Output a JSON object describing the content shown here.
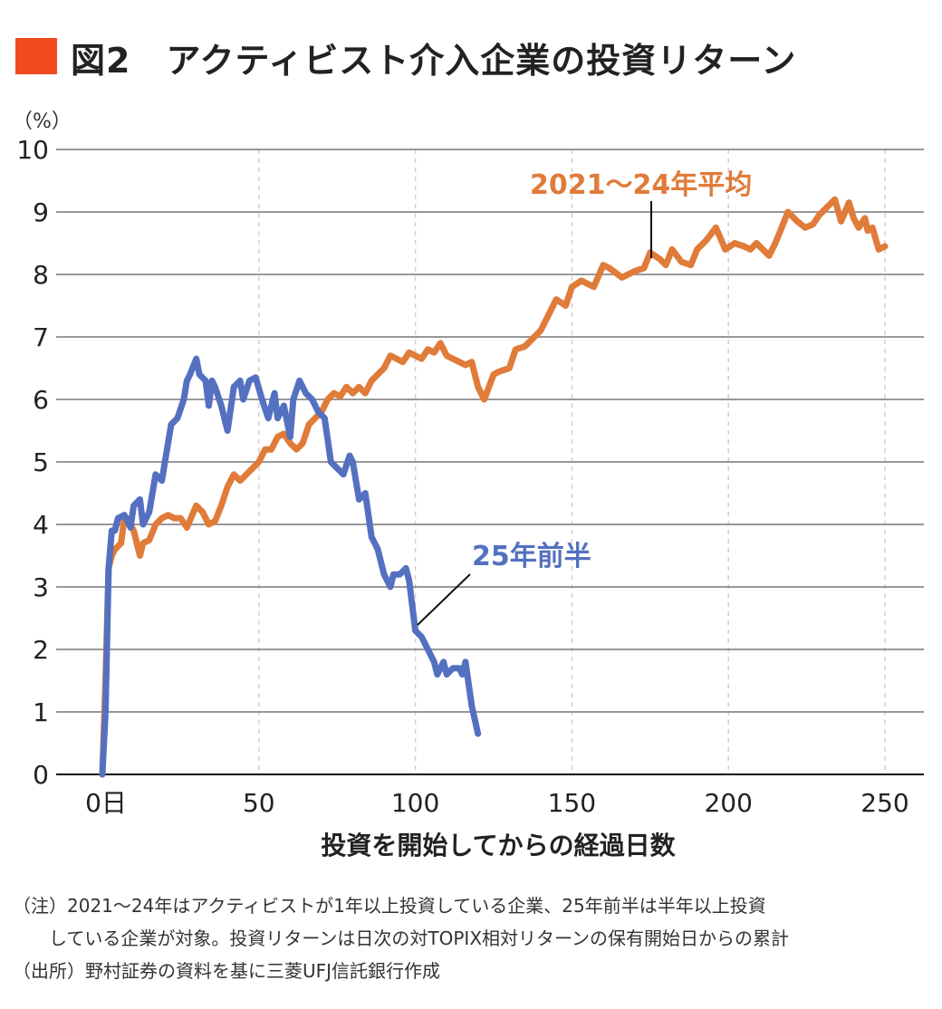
{
  "header": {
    "title": "図2　アクティビスト介入企業の投資リターン",
    "title_mark_color": "#f04a1e"
  },
  "chart_data": {
    "type": "line",
    "title": "図2　アクティビスト介入企業の投資リターン",
    "ylabel": "（%）",
    "xlabel": "投資を開始してからの経過日数",
    "xlim": [
      0,
      250
    ],
    "ylim": [
      0,
      10
    ],
    "x_ticks": [
      0,
      50,
      100,
      150,
      200,
      250
    ],
    "x_tick_labels": [
      "0日",
      "50",
      "100",
      "150",
      "200",
      "250"
    ],
    "y_ticks": [
      0,
      1,
      2,
      3,
      4,
      5,
      6,
      7,
      8,
      9,
      10
    ],
    "y_tick_labels": [
      "0",
      "1",
      "2",
      "3",
      "4",
      "5",
      "6",
      "7",
      "8",
      "9",
      "10"
    ],
    "grid": {
      "horizontal": "solid",
      "vertical": "dashed"
    },
    "legend": "direct labels",
    "series": [
      {
        "name": "2021～24年平均",
        "color": "#e07b39",
        "points": [
          [
            0,
            0
          ],
          [
            1,
            1.5
          ],
          [
            2,
            3.3
          ],
          [
            3,
            3.5
          ],
          [
            4,
            3.6
          ],
          [
            6,
            3.7
          ],
          [
            7,
            4.1
          ],
          [
            8,
            4.1
          ],
          [
            10,
            3.9
          ],
          [
            12,
            3.5
          ],
          [
            13,
            3.7
          ],
          [
            15,
            3.75
          ],
          [
            17,
            4.0
          ],
          [
            19,
            4.1
          ],
          [
            21,
            4.15
          ],
          [
            23,
            4.1
          ],
          [
            25,
            4.1
          ],
          [
            27,
            3.95
          ],
          [
            30,
            4.3
          ],
          [
            32,
            4.2
          ],
          [
            34,
            4.0
          ],
          [
            36,
            4.05
          ],
          [
            38,
            4.3
          ],
          [
            40,
            4.6
          ],
          [
            42,
            4.8
          ],
          [
            44,
            4.7
          ],
          [
            46,
            4.8
          ],
          [
            48,
            4.9
          ],
          [
            50,
            5.0
          ],
          [
            52,
            5.2
          ],
          [
            54,
            5.2
          ],
          [
            56,
            5.4
          ],
          [
            58,
            5.45
          ],
          [
            60,
            5.3
          ],
          [
            62,
            5.2
          ],
          [
            64,
            5.3
          ],
          [
            66,
            5.6
          ],
          [
            68,
            5.7
          ],
          [
            70,
            5.8
          ],
          [
            72,
            6.0
          ],
          [
            74,
            6.1
          ],
          [
            76,
            6.05
          ],
          [
            78,
            6.2
          ],
          [
            80,
            6.1
          ],
          [
            82,
            6.2
          ],
          [
            84,
            6.1
          ],
          [
            86,
            6.3
          ],
          [
            88,
            6.4
          ],
          [
            90,
            6.5
          ],
          [
            92,
            6.7
          ],
          [
            94,
            6.65
          ],
          [
            96,
            6.6
          ],
          [
            98,
            6.75
          ],
          [
            100,
            6.7
          ],
          [
            102,
            6.65
          ],
          [
            104,
            6.8
          ],
          [
            106,
            6.75
          ],
          [
            108,
            6.9
          ],
          [
            110,
            6.7
          ],
          [
            112,
            6.65
          ],
          [
            114,
            6.6
          ],
          [
            116,
            6.55
          ],
          [
            118,
            6.6
          ],
          [
            120,
            6.2
          ],
          [
            122,
            6.0
          ],
          [
            125,
            6.4
          ],
          [
            127,
            6.45
          ],
          [
            130,
            6.5
          ],
          [
            132,
            6.8
          ],
          [
            135,
            6.85
          ],
          [
            138,
            7.0
          ],
          [
            140,
            7.1
          ],
          [
            142,
            7.3
          ],
          [
            145,
            7.6
          ],
          [
            148,
            7.5
          ],
          [
            150,
            7.8
          ],
          [
            153,
            7.9
          ],
          [
            157,
            7.8
          ],
          [
            160,
            8.15
          ],
          [
            162,
            8.1
          ],
          [
            166,
            7.95
          ],
          [
            170,
            8.05
          ],
          [
            173,
            8.1
          ],
          [
            175,
            8.35
          ],
          [
            178,
            8.25
          ],
          [
            180,
            8.15
          ],
          [
            182,
            8.4
          ],
          [
            185,
            8.2
          ],
          [
            188,
            8.15
          ],
          [
            190,
            8.4
          ],
          [
            193,
            8.55
          ],
          [
            196,
            8.75
          ],
          [
            199,
            8.4
          ],
          [
            202,
            8.5
          ],
          [
            205,
            8.45
          ],
          [
            207,
            8.4
          ],
          [
            209,
            8.5
          ],
          [
            213,
            8.3
          ],
          [
            215,
            8.5
          ],
          [
            217,
            8.75
          ],
          [
            219,
            9.0
          ],
          [
            222,
            8.85
          ],
          [
            224.5,
            8.75
          ],
          [
            227,
            8.8
          ],
          [
            229,
            8.95
          ],
          [
            231,
            9.05
          ],
          [
            234,
            9.2
          ],
          [
            236,
            8.85
          ],
          [
            238.5,
            9.15
          ],
          [
            240,
            8.9
          ],
          [
            241.6,
            8.75
          ],
          [
            243.6,
            8.9
          ],
          [
            244.5,
            8.7
          ],
          [
            246,
            8.75
          ],
          [
            248,
            8.4
          ],
          [
            250,
            8.45
          ]
        ]
      },
      {
        "name": "25年前半",
        "color": "#5470c0",
        "points": [
          [
            0,
            0
          ],
          [
            1,
            1.0
          ],
          [
            2,
            3.3
          ],
          [
            3,
            3.9
          ],
          [
            4,
            3.9
          ],
          [
            5,
            4.1
          ],
          [
            7,
            4.15
          ],
          [
            9,
            3.95
          ],
          [
            10,
            4.3
          ],
          [
            12,
            4.4
          ],
          [
            13,
            4.0
          ],
          [
            15,
            4.2
          ],
          [
            17,
            4.8
          ],
          [
            19,
            4.7
          ],
          [
            20,
            5.0
          ],
          [
            22,
            5.6
          ],
          [
            24,
            5.7
          ],
          [
            26,
            6.0
          ],
          [
            27,
            6.3
          ],
          [
            28,
            6.4
          ],
          [
            30,
            6.65
          ],
          [
            31,
            6.4
          ],
          [
            33,
            6.3
          ],
          [
            34,
            5.9
          ],
          [
            35,
            6.3
          ],
          [
            36,
            6.2
          ],
          [
            38,
            5.9
          ],
          [
            40,
            5.5
          ],
          [
            42,
            6.2
          ],
          [
            44,
            6.3
          ],
          [
            45,
            6.0
          ],
          [
            47,
            6.3
          ],
          [
            49,
            6.35
          ],
          [
            51,
            6.0
          ],
          [
            53,
            5.7
          ],
          [
            55,
            6.1
          ],
          [
            56,
            5.7
          ],
          [
            58,
            5.9
          ],
          [
            60,
            5.4
          ],
          [
            61,
            6.0
          ],
          [
            63,
            6.3
          ],
          [
            65,
            6.1
          ],
          [
            67,
            6.0
          ],
          [
            69,
            5.8
          ],
          [
            71,
            5.7
          ],
          [
            73,
            5.0
          ],
          [
            75,
            4.9
          ],
          [
            77,
            4.8
          ],
          [
            79,
            5.1
          ],
          [
            80,
            5.0
          ],
          [
            82,
            4.4
          ],
          [
            84,
            4.5
          ],
          [
            86,
            3.8
          ],
          [
            88,
            3.6
          ],
          [
            90,
            3.2
          ],
          [
            92,
            3.0
          ],
          [
            93,
            3.2
          ],
          [
            95,
            3.2
          ],
          [
            97,
            3.3
          ],
          [
            98,
            3.1
          ],
          [
            100,
            2.3
          ],
          [
            102,
            2.2
          ],
          [
            104,
            2.0
          ],
          [
            106,
            1.8
          ],
          [
            107,
            1.6
          ],
          [
            109,
            1.8
          ],
          [
            110,
            1.6
          ],
          [
            112,
            1.7
          ],
          [
            114,
            1.7
          ],
          [
            115,
            1.6
          ],
          [
            116,
            1.8
          ],
          [
            118,
            1.1
          ],
          [
            120,
            0.65
          ]
        ]
      }
    ]
  },
  "notes": [
    "（注）2021～24年はアクティビストが1年以上投資している企業、25年前半は半年以上投資",
    "　　している企業が対象。投資リターンは日次の対TOPIX相対リターンの保有開始日からの累計",
    "（出所）野村証券の資料を基に三菱UFJ信託銀行作成"
  ]
}
